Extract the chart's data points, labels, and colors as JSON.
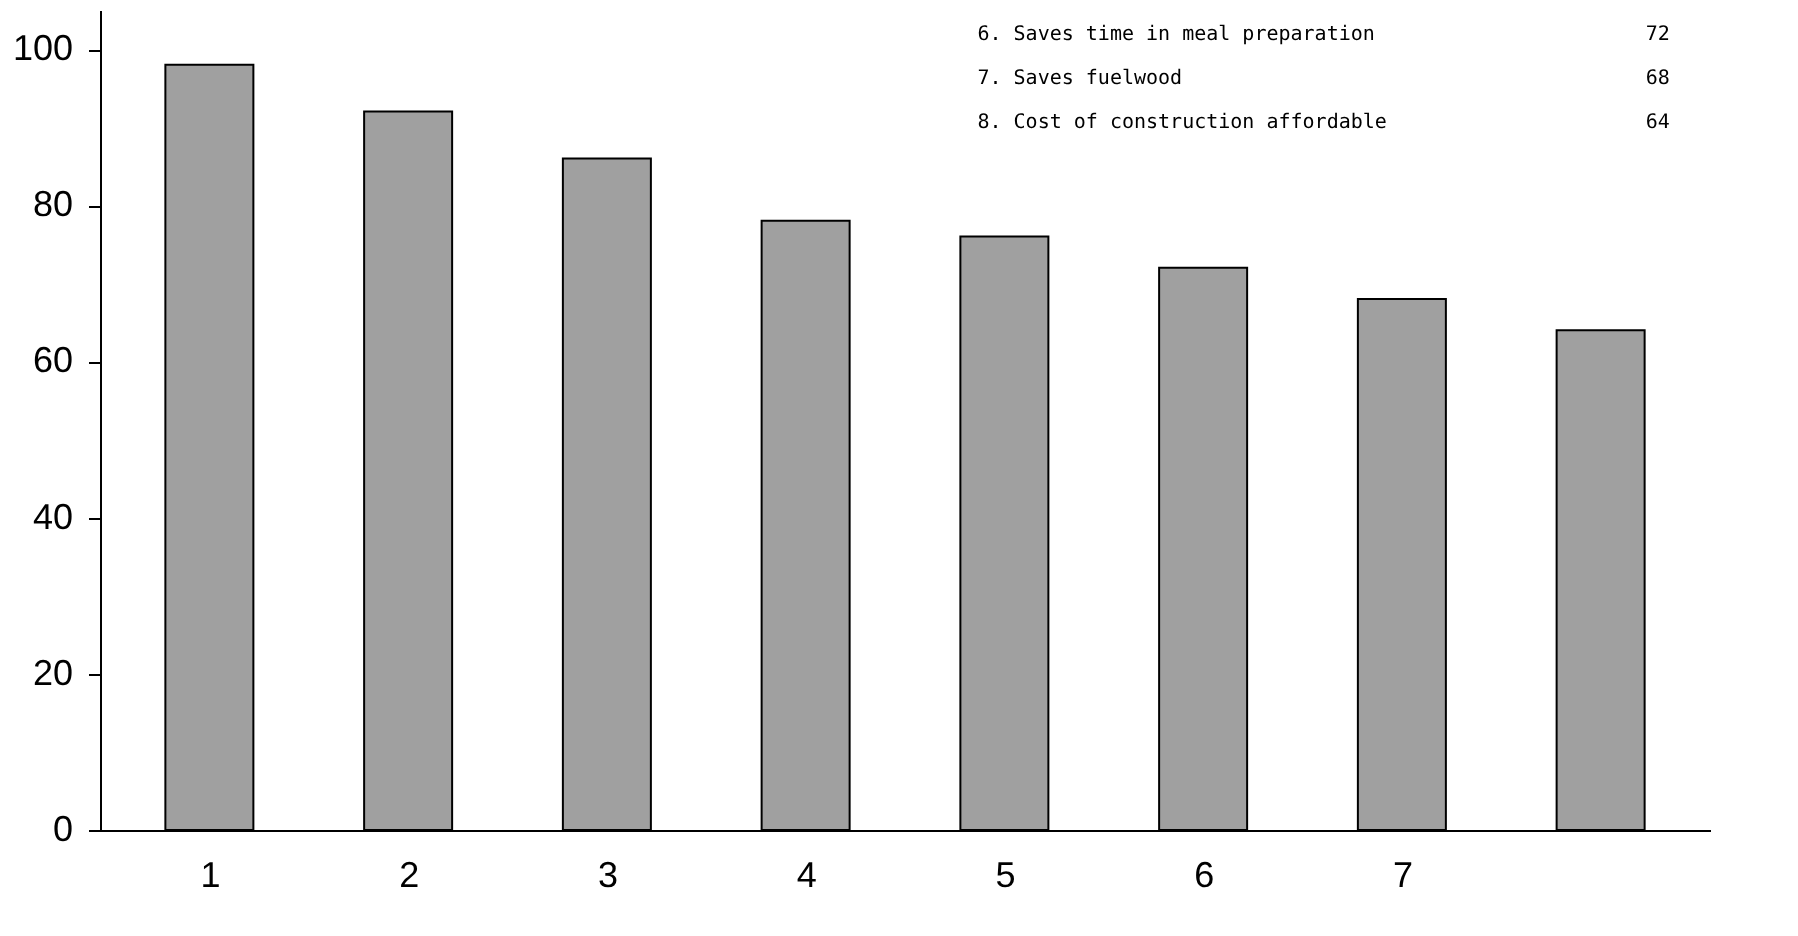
{
  "chart_data": {
    "type": "bar",
    "categories": [
      "1",
      "2",
      "3",
      "4",
      "5",
      "6",
      "7",
      null
    ],
    "values": [
      98,
      92,
      86,
      78,
      76,
      72,
      68,
      64
    ],
    "color": "#a0a0a0",
    "ylim": [
      0,
      105
    ],
    "yticks": [
      0,
      20,
      40,
      60,
      80,
      100
    ],
    "grid": false,
    "annotations": [
      "6. Saves time in meal preparation",
      "72",
      "7. Saves fuelwood",
      "68",
      "8. Cost of construction affordable",
      "64"
    ]
  }
}
